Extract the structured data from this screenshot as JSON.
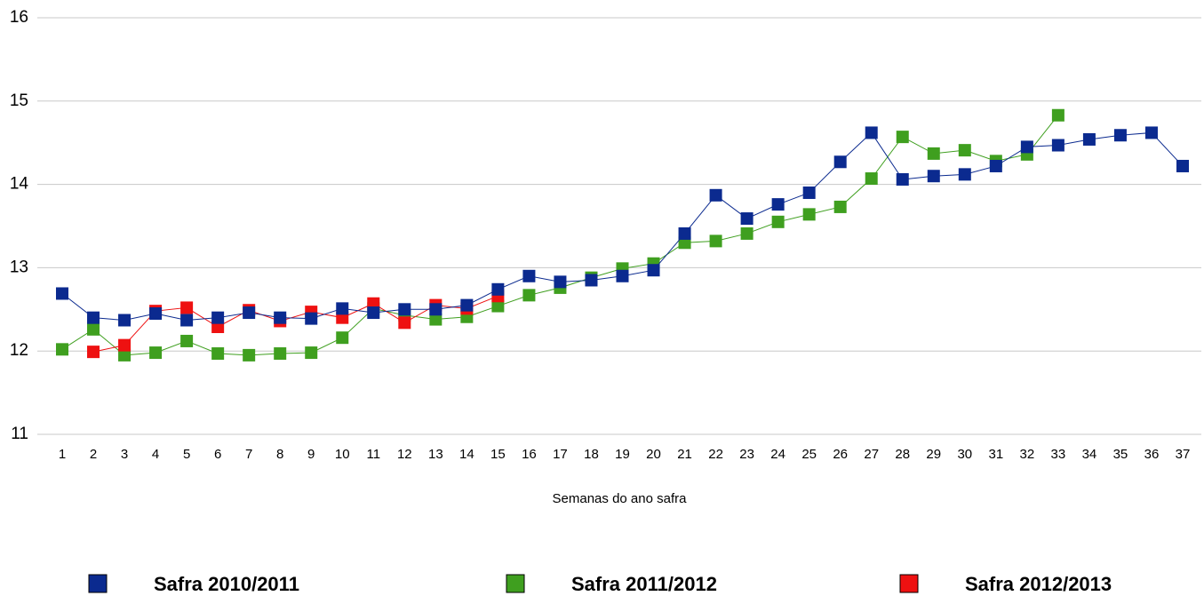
{
  "chart_data": {
    "type": "line",
    "x_label": "Semanas do ano safra",
    "categories": [
      "1",
      "2",
      "3",
      "4",
      "5",
      "6",
      "7",
      "8",
      "9",
      "10",
      "11",
      "12",
      "13",
      "14",
      "15",
      "16",
      "17",
      "18",
      "19",
      "20",
      "21",
      "22",
      "23",
      "24",
      "25",
      "26",
      "27",
      "28",
      "29",
      "30",
      "31",
      "32",
      "33",
      "34",
      "35",
      "36",
      "37"
    ],
    "ylim": [
      11,
      16
    ],
    "yticks": [
      11,
      12,
      13,
      14,
      15,
      16
    ],
    "grid": true,
    "legend": "bottom",
    "series": [
      {
        "name": "Safra 2010/2011",
        "color": "#0b2a8f",
        "values": [
          12.69,
          12.4,
          12.37,
          12.45,
          12.37,
          12.4,
          12.46,
          12.4,
          12.39,
          12.51,
          12.46,
          12.5,
          12.5,
          12.55,
          12.74,
          12.9,
          12.83,
          12.85,
          12.9,
          12.97,
          13.41,
          13.87,
          13.59,
          13.76,
          13.9,
          14.27,
          14.62,
          14.06,
          14.1,
          14.12,
          14.22,
          14.45,
          14.47,
          14.54,
          14.59,
          14.62,
          14.22
        ]
      },
      {
        "name": "Safra 2011/2012",
        "color": "#3f9f1f",
        "values": [
          12.02,
          12.26,
          11.95,
          11.98,
          12.12,
          11.97,
          11.95,
          11.97,
          11.98,
          12.16,
          12.51,
          12.43,
          12.38,
          12.41,
          12.54,
          12.67,
          12.76,
          12.88,
          12.99,
          13.05,
          13.3,
          13.32,
          13.41,
          13.55,
          13.64,
          13.73,
          14.07,
          14.57,
          14.37,
          14.41,
          14.28,
          14.36,
          14.83,
          null,
          null,
          null,
          null
        ]
      },
      {
        "name": "Safra 2012/2013",
        "color": "#ee1111",
        "values": [
          null,
          11.99,
          12.07,
          12.48,
          12.52,
          12.29,
          12.49,
          12.36,
          12.47,
          12.4,
          12.57,
          12.34,
          12.55,
          12.51,
          12.66,
          null,
          null,
          null,
          null,
          null,
          null,
          null,
          null,
          null,
          null,
          null,
          null,
          null,
          null,
          null,
          null,
          null,
          null,
          null,
          null,
          null,
          null
        ]
      }
    ]
  }
}
